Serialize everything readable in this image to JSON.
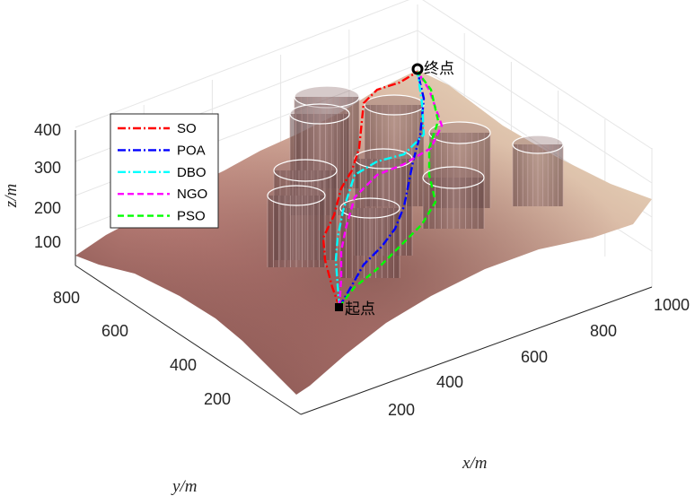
{
  "chart_data": {
    "type": "surface3d-paths",
    "axes": {
      "x": {
        "label": "x/m",
        "ticks": [
          200,
          400,
          600,
          800,
          1000
        ]
      },
      "y": {
        "label": "y/m",
        "ticks": [
          200,
          400,
          600,
          800
        ]
      },
      "z": {
        "label": "z/m",
        "ticks": [
          100,
          200,
          300,
          400
        ]
      }
    },
    "grid": true,
    "terrain": {
      "description_colormap": "pink",
      "colors": [
        "#7a4a44",
        "#c98f86",
        "#f1e6c8"
      ]
    },
    "points": {
      "start": {
        "label": "起点"
      },
      "goal": {
        "label": "终点"
      }
    },
    "legend": {
      "placement": "upper-left",
      "entries": [
        {
          "name": "SO",
          "color": "#ff0000",
          "dash": "dashdot"
        },
        {
          "name": "POA",
          "color": "#0000ff",
          "dash": "dashdot"
        },
        {
          "name": "DBO",
          "color": "#00ffff",
          "dash": "dashdot"
        },
        {
          "name": "NGO",
          "color": "#ff00ff",
          "dash": "dash"
        },
        {
          "name": "PSO",
          "color": "#00ff00",
          "dash": "dash"
        }
      ]
    },
    "obstacles": 9
  }
}
